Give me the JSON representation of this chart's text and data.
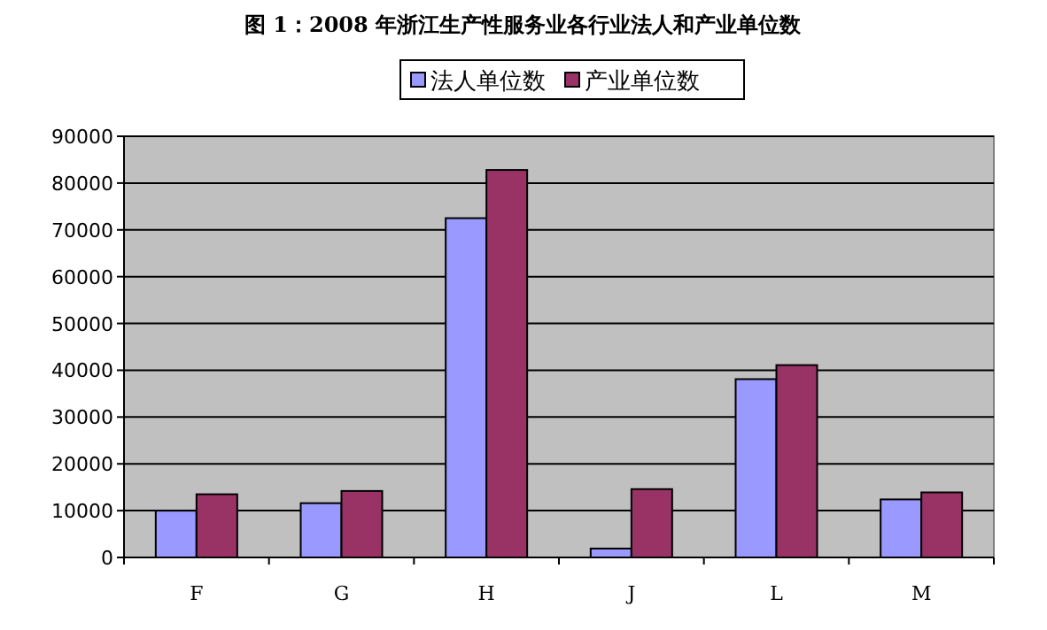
{
  "chart_data": {
    "type": "bar",
    "title": "图 1：2008 年浙江生产性服务业各行业法人和产业单位数",
    "categories": [
      "F",
      "G",
      "H",
      "J",
      "L",
      "M"
    ],
    "series": [
      {
        "name": "法人单位数",
        "color": "#9999ff",
        "values": [
          10000,
          11600,
          72500,
          1900,
          38100,
          12400
        ]
      },
      {
        "name": "产业单位数",
        "color": "#993366",
        "values": [
          13500,
          14200,
          82800,
          14600,
          41100,
          13900
        ]
      }
    ],
    "ylim": [
      0,
      90000
    ],
    "yticks": [
      0,
      10000,
      20000,
      30000,
      40000,
      50000,
      60000,
      70000,
      80000,
      90000
    ],
    "grid": "y",
    "legend": "top"
  }
}
